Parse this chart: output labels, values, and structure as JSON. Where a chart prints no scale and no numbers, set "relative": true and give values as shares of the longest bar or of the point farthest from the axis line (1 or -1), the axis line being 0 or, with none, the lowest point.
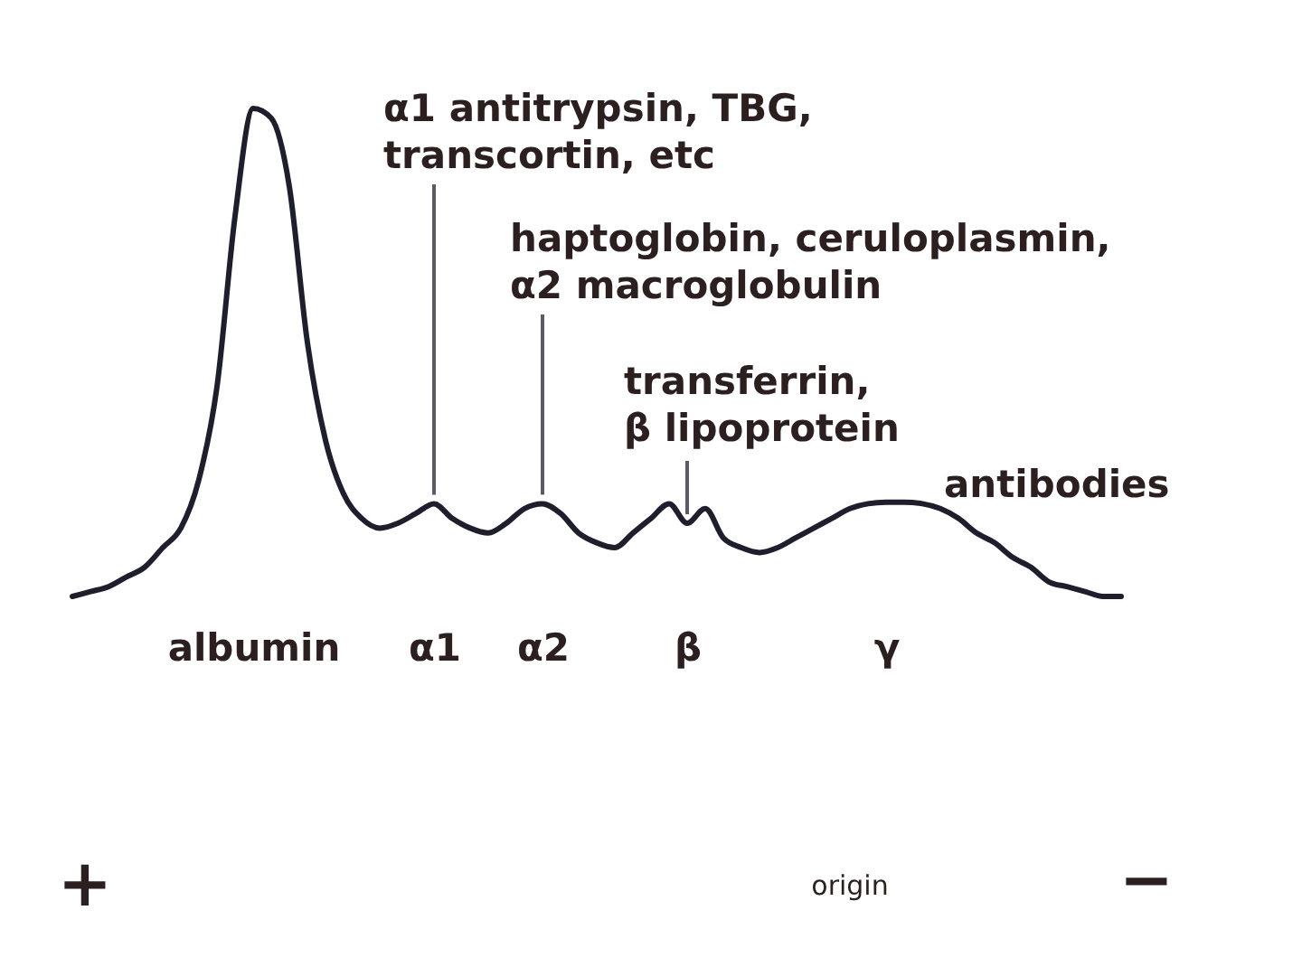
{
  "chart_data": {
    "type": "line",
    "relative": true,
    "color": "#1e1e2d",
    "line_style": "solid",
    "marker": "none",
    "categories": [
      null,
      null,
      null,
      null,
      null,
      null,
      null,
      null,
      null,
      null,
      "albumin",
      null,
      null,
      null,
      null,
      null,
      null,
      null,
      null,
      null,
      "α1",
      null,
      null,
      null,
      null,
      null,
      "α2",
      null,
      null,
      null,
      null,
      null,
      null,
      null,
      "β",
      null,
      null,
      null,
      null,
      null,
      null,
      null,
      null,
      null,
      null,
      "γ",
      null,
      null,
      null,
      null,
      null,
      null,
      null,
      null,
      null,
      null,
      null,
      null,
      null
    ],
    "values": [
      0,
      0.01,
      0.02,
      0.04,
      0.06,
      0.1,
      0.14,
      0.24,
      0.43,
      0.78,
      1,
      0.98,
      0.84,
      0.52,
      0.32,
      0.21,
      0.16,
      0.14,
      0.15,
      0.17,
      0.19,
      0.16,
      0.14,
      0.13,
      0.15,
      0.18,
      0.19,
      0.17,
      0.13,
      0.11,
      0.1,
      0.13,
      0.16,
      0.19,
      0.15,
      0.18,
      0.12,
      0.1,
      0.09,
      0.1,
      0.12,
      0.14,
      0.16,
      0.18,
      0.19,
      0.193,
      0.193,
      0.19,
      0.18,
      0.16,
      0.13,
      0.11,
      0.08,
      0.06,
      0.03,
      0.02,
      0.01,
      0,
      0
    ],
    "annotations": [
      {
        "text": "α1 antitrypsin, TBG,\ntranscortin, etc",
        "x": "α1",
        "y": 0.19
      },
      {
        "text": "haptoglobin, ceruloplasmin,\nα2 macroglobulin",
        "x": "α2",
        "y": 0.19
      },
      {
        "text": "transferrin,\nβ lipoprotein",
        "x": "β",
        "y": 0.15
      },
      {
        "text": "antibodies",
        "x": "γ",
        "y": 0.193
      },
      "+",
      "origin",
      "−"
    ]
  }
}
